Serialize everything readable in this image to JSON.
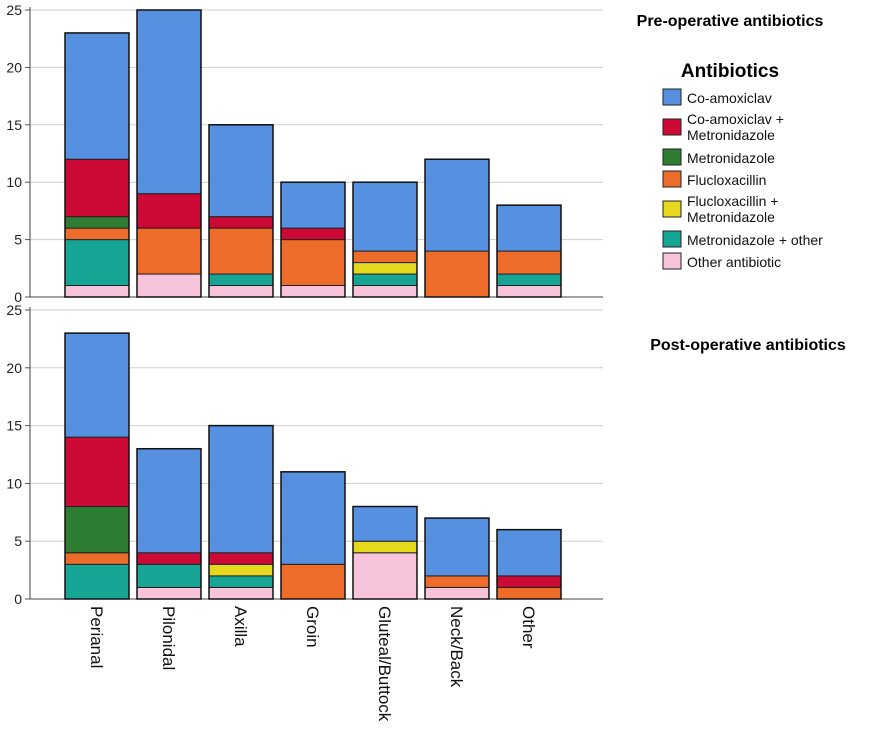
{
  "chart_data": {
    "type": "bar",
    "stacked": true,
    "categories": [
      "Perianal",
      "Pilonidal",
      "Axilla",
      "Groin",
      "Gluteal/Buttock",
      "Neck/Back",
      "Other"
    ],
    "legend": {
      "title": "Antibiotics",
      "placement": "right",
      "entries": [
        {
          "key": "co_amoxiclav",
          "lines": [
            "Co-amoxiclav"
          ],
          "color": "#5591e0"
        },
        {
          "key": "co_amox_metro",
          "lines": [
            "Co-amoxiclav +",
            "Metronidazole"
          ],
          "color": "#cc0a35"
        },
        {
          "key": "metronidazole",
          "lines": [
            "Metronidazole"
          ],
          "color": "#2e7d32"
        },
        {
          "key": "flucloxacillin",
          "lines": [
            "Flucloxacillin"
          ],
          "color": "#ee6c2a"
        },
        {
          "key": "fluclox_metro",
          "lines": [
            "Flucloxacillin +",
            "Metronidazole"
          ],
          "color": "#e6d81c"
        },
        {
          "key": "metro_other",
          "lines": [
            "Metronidazole + other"
          ],
          "color": "#17a595"
        },
        {
          "key": "other_antibiotic",
          "lines": [
            "Other antibiotic"
          ],
          "color": "#f8c4dc"
        }
      ]
    },
    "stack_order": [
      "other_antibiotic",
      "metro_other",
      "fluclox_metro",
      "flucloxacillin",
      "metronidazole",
      "co_amox_metro",
      "co_amoxiclav"
    ],
    "panels": [
      {
        "title": "Pre-operative antibiotics",
        "ylim": [
          0,
          25
        ],
        "yticks": [
          0,
          5,
          10,
          15,
          20,
          25
        ],
        "grid": true,
        "series": [
          {
            "key": "other_antibiotic",
            "values": [
              1,
              2,
              1,
              1,
              1,
              0,
              1
            ]
          },
          {
            "key": "metro_other",
            "values": [
              4,
              0,
              1,
              0,
              1,
              0,
              1
            ]
          },
          {
            "key": "fluclox_metro",
            "values": [
              0,
              0,
              0,
              0,
              1,
              0,
              0
            ]
          },
          {
            "key": "flucloxacillin",
            "values": [
              1,
              4,
              4,
              4,
              1,
              4,
              2
            ]
          },
          {
            "key": "metronidazole",
            "values": [
              1,
              0,
              0,
              0,
              0,
              0,
              0
            ]
          },
          {
            "key": "co_amox_metro",
            "values": [
              5,
              3,
              1,
              1,
              0,
              0,
              0
            ]
          },
          {
            "key": "co_amoxiclav",
            "values": [
              11,
              16,
              8,
              4,
              6,
              8,
              4
            ]
          }
        ]
      },
      {
        "title": "Post-operative antibiotics",
        "ylim": [
          0,
          25
        ],
        "yticks": [
          0,
          5,
          10,
          15,
          20,
          25
        ],
        "grid": true,
        "series": [
          {
            "key": "other_antibiotic",
            "values": [
              0,
              1,
              1,
              0,
              4,
              1,
              0
            ]
          },
          {
            "key": "metro_other",
            "values": [
              3,
              2,
              1,
              0,
              0,
              0,
              0
            ]
          },
          {
            "key": "fluclox_metro",
            "values": [
              0,
              0,
              1,
              0,
              1,
              0,
              0
            ]
          },
          {
            "key": "flucloxacillin",
            "values": [
              1,
              0,
              0,
              3,
              0,
              1,
              1
            ]
          },
          {
            "key": "metronidazole",
            "values": [
              4,
              0,
              0,
              0,
              0,
              0,
              0
            ]
          },
          {
            "key": "co_amox_metro",
            "values": [
              6,
              1,
              1,
              0,
              0,
              0,
              1
            ]
          },
          {
            "key": "co_amoxiclav",
            "values": [
              9,
              9,
              11,
              8,
              3,
              5,
              4
            ]
          }
        ]
      }
    ]
  }
}
